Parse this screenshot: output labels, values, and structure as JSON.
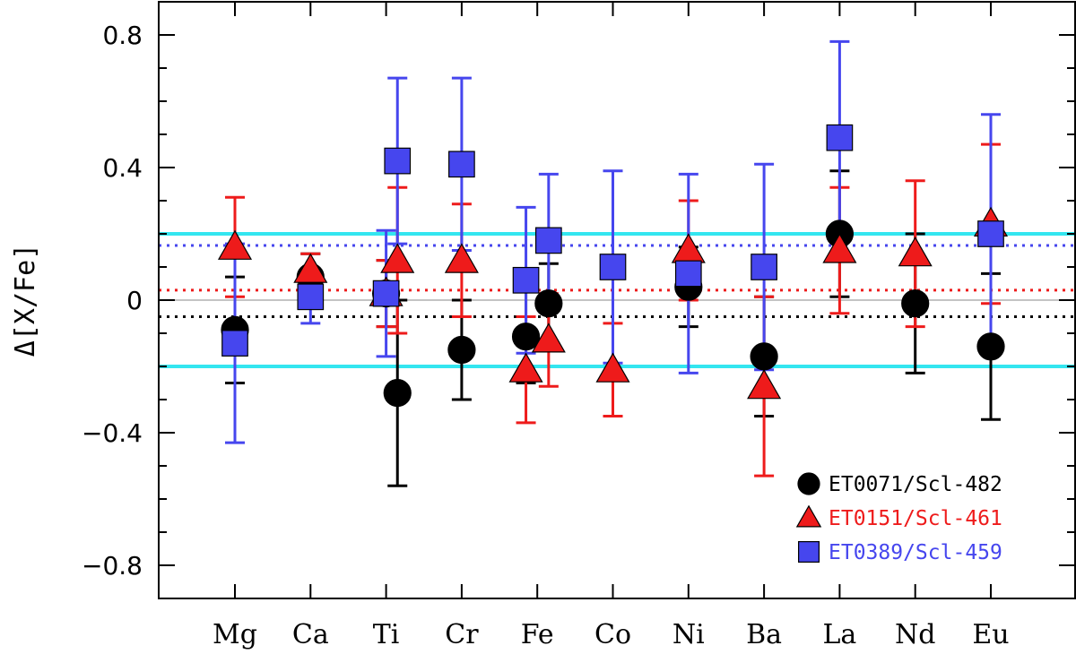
{
  "chart_data": {
    "type": "scatter",
    "title": "",
    "xlabel": "",
    "ylabel": "Δ[X/Fe]",
    "ylim": [
      -0.9,
      0.9
    ],
    "yticks": [
      -0.8,
      -0.4,
      0,
      0.4,
      0.8
    ],
    "ytick_labels": [
      "−0.8",
      "−0.4",
      "0",
      "0.4",
      "0.8"
    ],
    "categories": [
      "Mg",
      "Ca",
      "Ti",
      "Cr",
      "Fe",
      "Co",
      "Ni",
      "Ba",
      "La",
      "Nd",
      "Eu"
    ],
    "legend_position": "bottom-right",
    "reference_lines": [
      {
        "name": "upper-band",
        "y": 0.2,
        "color": "#33e6f0",
        "style": "solid"
      },
      {
        "name": "lower-band",
        "y": -0.2,
        "color": "#33e6f0",
        "style": "solid"
      },
      {
        "name": "zero",
        "y": 0.0,
        "color": "#b0b0b0",
        "style": "solid"
      },
      {
        "name": "mean-ET0389",
        "y": 0.165,
        "color": "#4646ee",
        "style": "dotted"
      },
      {
        "name": "mean-ET0151",
        "y": 0.03,
        "color": "#ee1b1b",
        "style": "dotted"
      },
      {
        "name": "mean-ET0071",
        "y": -0.05,
        "color": "#000000",
        "style": "dotted"
      }
    ],
    "series": [
      {
        "name": "ET0071/Scl-482",
        "marker": "circle",
        "color": "#000000",
        "points": [
          {
            "element": "Mg",
            "x": 0,
            "y": -0.09,
            "err": 0.16
          },
          {
            "element": "Ca",
            "x": 1,
            "y": 0.07,
            "err": 0.07
          },
          {
            "element": "Ti",
            "x": 2,
            "y": 0.02,
            "err": 0.1
          },
          {
            "element": "Ti",
            "x": 2.15,
            "y": -0.28,
            "err": 0.28
          },
          {
            "element": "Cr",
            "x": 3,
            "y": -0.15,
            "err": 0.15
          },
          {
            "element": "Fe",
            "x": 3.85,
            "y": -0.11,
            "err": 0.14
          },
          {
            "element": "Fe",
            "x": 4.15,
            "y": -0.01,
            "err": 0.12
          },
          {
            "element": "Ni",
            "x": 6,
            "y": 0.04,
            "err": 0.12
          },
          {
            "element": "Ba",
            "x": 7,
            "y": -0.17,
            "err": 0.18
          },
          {
            "element": "La",
            "x": 8,
            "y": 0.2,
            "err": 0.19
          },
          {
            "element": "Nd",
            "x": 9,
            "y": -0.01,
            "err": 0.21
          },
          {
            "element": "Eu",
            "x": 10,
            "y": -0.14,
            "err": 0.22
          }
        ]
      },
      {
        "name": "ET0151/Scl-461",
        "marker": "triangle",
        "color": "#ee1b1b",
        "points": [
          {
            "element": "Mg",
            "x": 0,
            "y": 0.16,
            "err": 0.15
          },
          {
            "element": "Ca",
            "x": 1,
            "y": 0.09,
            "err": 0.05
          },
          {
            "element": "Ti",
            "x": 2,
            "y": 0.02,
            "err": 0.1
          },
          {
            "element": "Ti",
            "x": 2.15,
            "y": 0.12,
            "err": 0.22
          },
          {
            "element": "Cr",
            "x": 3,
            "y": 0.12,
            "err": 0.17
          },
          {
            "element": "Fe",
            "x": 3.85,
            "y": -0.21,
            "err": 0.16
          },
          {
            "element": "Fe",
            "x": 4.15,
            "y": -0.12,
            "err": 0.14
          },
          {
            "element": "Co",
            "x": 5,
            "y": -0.21,
            "err": 0.14
          },
          {
            "element": "Ni",
            "x": 6,
            "y": 0.15,
            "err": 0.15
          },
          {
            "element": "Ba",
            "x": 7,
            "y": -0.26,
            "err": 0.27
          },
          {
            "element": "La",
            "x": 8,
            "y": 0.15,
            "err": 0.19
          },
          {
            "element": "Nd",
            "x": 9,
            "y": 0.14,
            "err": 0.22
          },
          {
            "element": "Eu",
            "x": 10,
            "y": 0.23,
            "err": 0.24
          }
        ]
      },
      {
        "name": "ET0389/Scl-459",
        "marker": "square",
        "color": "#4646ee",
        "points": [
          {
            "element": "Mg",
            "x": 0,
            "y": -0.13,
            "err": 0.3
          },
          {
            "element": "Ca",
            "x": 1,
            "y": 0.01,
            "err": 0.08
          },
          {
            "element": "Ti",
            "x": 2,
            "y": 0.02,
            "err": 0.19
          },
          {
            "element": "Ti",
            "x": 2.15,
            "y": 0.42,
            "err": 0.25
          },
          {
            "element": "Cr",
            "x": 3,
            "y": 0.41,
            "err": 0.26
          },
          {
            "element": "Fe",
            "x": 3.85,
            "y": 0.06,
            "err": 0.22
          },
          {
            "element": "Fe",
            "x": 4.15,
            "y": 0.18,
            "err": 0.2
          },
          {
            "element": "Co",
            "x": 5,
            "y": 0.1,
            "err": 0.29
          },
          {
            "element": "Ni",
            "x": 6,
            "y": 0.08,
            "err": 0.3
          },
          {
            "element": "Ba",
            "x": 7,
            "y": 0.1,
            "err": 0.31
          },
          {
            "element": "La",
            "x": 8,
            "y": 0.49,
            "err": 0.29
          },
          {
            "element": "Eu",
            "x": 10,
            "y": 0.2,
            "err": 0.36
          }
        ]
      }
    ]
  }
}
